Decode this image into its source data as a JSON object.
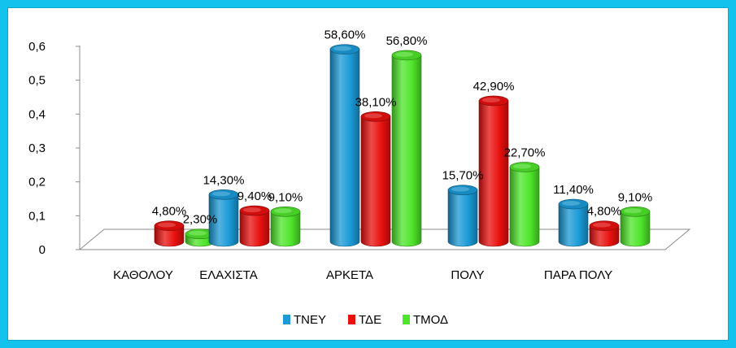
{
  "chart_data": {
    "type": "bar",
    "categories": [
      "ΚΑΘΟΛΟΥ",
      "ΕΛΑΧΙΣΤΑ",
      "ΑΡΚΕΤΑ",
      "ΠΟΛΥ",
      "ΠΑΡΑ ΠΟΛΥ"
    ],
    "series": [
      {
        "name": "ΤΝΕΥ",
        "values": [
          0,
          0.143,
          0.586,
          0.157,
          0.114
        ],
        "labels": [
          "",
          "14,30%",
          "58,60%",
          "15,70%",
          "11,40%"
        ],
        "color": "#1a9ad6"
      },
      {
        "name": "ΤΔΕ",
        "values": [
          0.048,
          0.094,
          0.381,
          0.429,
          0.048
        ],
        "labels": [
          "4,80%",
          "9,40%",
          "38,10%",
          "42,90%",
          "4,80%"
        ],
        "color": "#e8100e"
      },
      {
        "name": "ΤΜΟΔ",
        "values": [
          0.023,
          0.091,
          0.568,
          0.227,
          0.091
        ],
        "labels": [
          "2,30%",
          "9,10%",
          "56,80%",
          "22,70%",
          "9,10%"
        ],
        "color": "#4ee52a"
      }
    ],
    "y_ticks": [
      "0",
      "0,1",
      "0,2",
      "0,3",
      "0,4",
      "0,5",
      "0,6"
    ],
    "ylim": [
      0,
      0.6
    ],
    "legend_position": "bottom",
    "grid": false
  }
}
